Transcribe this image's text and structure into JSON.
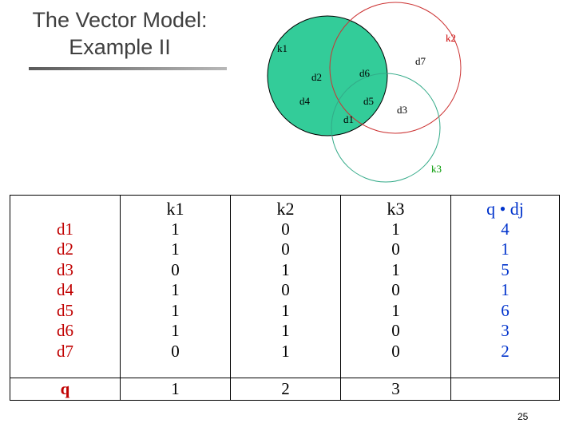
{
  "slide": {
    "title_line1": "The Vector Model:",
    "title_line2": "Example  II",
    "page_number": "25"
  },
  "venn": {
    "labels": {
      "k1": "k1",
      "k2": "k2",
      "k3": "k3",
      "d1": "d1",
      "d2": "d2",
      "d3": "d3",
      "d4": "d4",
      "d5": "d5",
      "d6": "d6",
      "d7": "d7"
    },
    "colors": {
      "k1_fill": "#33cc99",
      "k2_stroke": "#cc3333",
      "k3_stroke": "#33aa88",
      "k3_label": "#009900",
      "k2_label": "#cc0000"
    }
  },
  "table": {
    "headers": {
      "doc": "",
      "k1": "k1",
      "k2": "k2",
      "k3": "k3",
      "score": "q • dj"
    },
    "docs": [
      "d1",
      "d2",
      "d3",
      "d4",
      "d5",
      "d6",
      "d7"
    ],
    "k1": [
      "1",
      "1",
      "0",
      "1",
      "1",
      "1",
      "0"
    ],
    "k2": [
      "0",
      "0",
      "1",
      "0",
      "1",
      "1",
      "1"
    ],
    "k3": [
      "1",
      "0",
      "1",
      "0",
      "1",
      "0",
      "0"
    ],
    "score": [
      "4",
      "1",
      "5",
      "1",
      "6",
      "3",
      "2"
    ],
    "query": {
      "label": "q",
      "k1": "1",
      "k2": "2",
      "k3": "3",
      "score": ""
    },
    "colors": {
      "doc_labels": "#c00000",
      "scores": "#0033cc"
    }
  }
}
